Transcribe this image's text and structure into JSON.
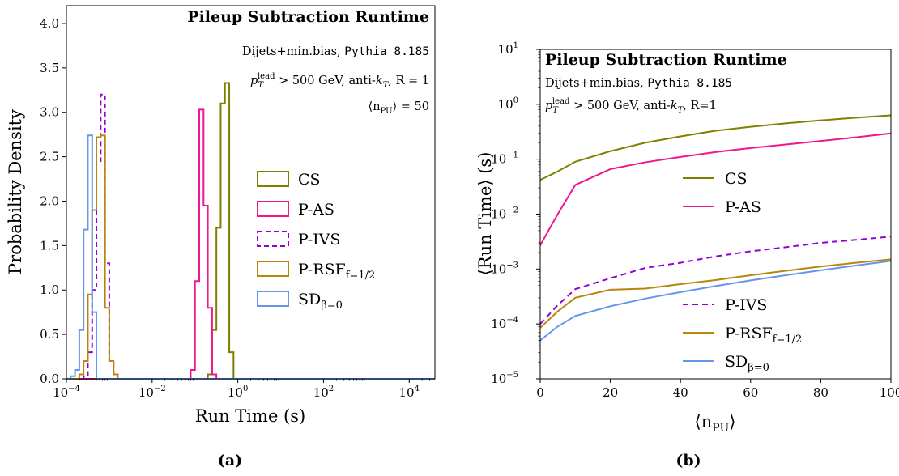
{
  "chart_data": [
    {
      "id": "a",
      "type": "histogram",
      "panel_label": "(a)",
      "title": "Pileup Subtraction Runtime",
      "annotations": [
        "Dijets+min.bias, ",
        "Pythia 8.185",
        "p_T^lead > 500 GeV, anti-k_T, R = 1",
        "⟨n_PU⟩ = 50"
      ],
      "annotation_parts": {
        "line1_text": "Dijets+min.bias, ",
        "line1_mono": "Pythia 8.185",
        "line2_p": "p",
        "line2_sub": "T",
        "line2_sup": "lead",
        "line2_rest": " > 500 GeV, anti-",
        "line2_k": "k",
        "line2_ksub": "T",
        "line2_R": ", R = 1",
        "line3_pre": "⟨n",
        "line3_sub": "PU",
        "line3_post": "⟩ = 50"
      },
      "xlabel": "Run Time (s)",
      "ylabel": "Probability Density",
      "xscale": "log",
      "xlim_log10": [
        -4,
        4.6
      ],
      "ylim": [
        0,
        4.2
      ],
      "x_ticks_log10": [
        -4,
        -2,
        0,
        2,
        4
      ],
      "x_tick_labels": [
        "10",
        "10",
        "10",
        "10",
        "10"
      ],
      "x_tick_exps": [
        "−4",
        "−2",
        "0",
        "2",
        "4"
      ],
      "y_ticks": [
        0,
        0.5,
        1.0,
        1.5,
        2.0,
        2.5,
        3.0,
        3.5,
        4.0
      ],
      "y_tick_labels": [
        "0.0",
        "0.5",
        "1.0",
        "1.5",
        "2.0",
        "2.5",
        "3.0",
        "3.5",
        "4.0"
      ],
      "bin_width_log10": 0.1,
      "legend_position": "center-right",
      "series": [
        {
          "name": "CS",
          "color": "#808000",
          "dash": false,
          "bins_start_log10": -0.7,
          "values": [
            0.05,
            0.55,
            1.7,
            3.1,
            3.33,
            0.3,
            0.0
          ]
        },
        {
          "name": "P-AS",
          "color": "#f0168f",
          "dash": false,
          "bins_start_log10": -1.1,
          "values": [
            0.1,
            1.1,
            3.03,
            1.95,
            0.8,
            0.05
          ]
        },
        {
          "name": "P-IVS",
          "color": "#9400d3",
          "dash": true,
          "bins_start_log10": -3.6,
          "values": [
            0.03,
            0.3,
            1.0,
            2.45,
            3.2,
            1.3,
            0.2,
            0.0
          ]
        },
        {
          "name": "P-RSF",
          "sub": "f=1/2",
          "color": "#b8860b",
          "dash": false,
          "bins_start_log10": -3.7,
          "values": [
            0.05,
            0.2,
            0.95,
            1.9,
            2.72,
            2.74,
            0.8,
            0.2,
            0.05,
            0.0
          ]
        },
        {
          "name": "SD",
          "sub": "β=0",
          "color": "#6495ed",
          "dash": false,
          "bins_start_log10": -3.9,
          "values": [
            0.03,
            0.1,
            0.55,
            1.68,
            2.74,
            0.75,
            0.0
          ]
        }
      ]
    },
    {
      "id": "b",
      "type": "line",
      "panel_label": "(b)",
      "title": "Pileup Subtraction Runtime",
      "annotation_parts": {
        "line1_text": "Dijets+min.bias, ",
        "line1_mono": "Pythia 8.185",
        "line2_p": "p",
        "line2_sub": "T",
        "line2_sup": "lead",
        "line2_rest": " > 500 GeV, anti-",
        "line2_k": "k",
        "line2_ksub": "T",
        "line2_R": ", R=1"
      },
      "xlabel_pre": "⟨n",
      "xlabel_sub": "PU",
      "xlabel_post": "⟩",
      "ylabel": "⟨Run Time⟩ (s)",
      "yscale": "log",
      "xlim": [
        0,
        100
      ],
      "ylim_log10": [
        -5,
        1
      ],
      "x_ticks": [
        0,
        20,
        40,
        60,
        80,
        100
      ],
      "x_tick_labels": [
        "0",
        "20",
        "40",
        "60",
        "80",
        "100"
      ],
      "y_ticks_log10": [
        -5,
        -4,
        -3,
        -2,
        -1,
        0,
        1
      ],
      "y_tick_labels": [
        "10",
        "10",
        "10",
        "10",
        "10",
        "10",
        "10"
      ],
      "y_tick_exps": [
        "−5",
        "−4",
        "−3",
        "−2",
        "−1",
        "0",
        "1"
      ],
      "legend_position": "right (two groups)",
      "x": [
        0,
        5,
        10,
        20,
        30,
        40,
        50,
        60,
        70,
        80,
        90,
        100
      ],
      "series": [
        {
          "name": "CS",
          "color": "#808000",
          "dash": false,
          "values": [
            0.042,
            0.06,
            0.09,
            0.14,
            0.2,
            0.26,
            0.33,
            0.39,
            0.45,
            0.51,
            0.57,
            0.63
          ]
        },
        {
          "name": "P-AS",
          "color": "#f0168f",
          "dash": false,
          "values": [
            0.0027,
            0.01,
            0.034,
            0.066,
            0.088,
            0.11,
            0.135,
            0.16,
            0.185,
            0.215,
            0.25,
            0.295
          ]
        },
        {
          "name": "P-IVS",
          "color": "#9400d3",
          "dash": true,
          "values": [
            0.0001,
            0.00022,
            0.00043,
            0.00068,
            0.00105,
            0.0013,
            0.0017,
            0.0021,
            0.0025,
            0.003,
            0.0034,
            0.0039
          ]
        },
        {
          "name": "P-RSF",
          "sub": "f=1/2",
          "color": "#b8860b",
          "dash": false,
          "values": [
            8.5e-05,
            0.00017,
            0.0003,
            0.00042,
            0.00044,
            0.00053,
            0.00063,
            0.00077,
            0.00093,
            0.00111,
            0.0013,
            0.0015
          ]
        },
        {
          "name": "SD",
          "sub": "β=0",
          "color": "#6495ed",
          "dash": false,
          "values": [
            5e-05,
            9e-05,
            0.00014,
            0.00021,
            0.00029,
            0.00038,
            0.00049,
            0.00062,
            0.00077,
            0.00095,
            0.00116,
            0.0014
          ]
        }
      ]
    }
  ]
}
